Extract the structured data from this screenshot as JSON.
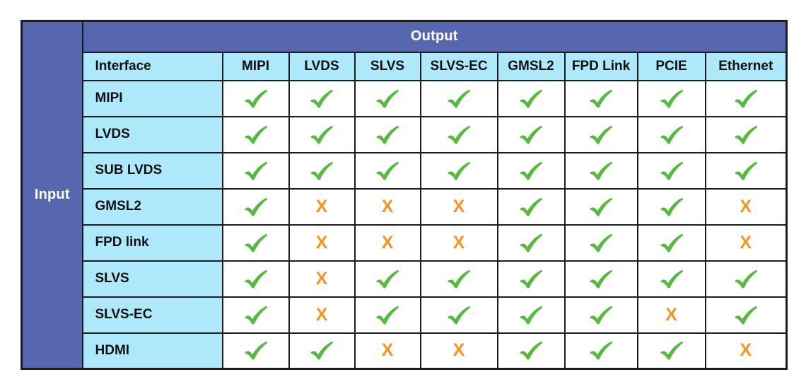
{
  "title_output": "Output",
  "title_input": "Input",
  "columns": [
    "Interface",
    "MIPI",
    "LVDS",
    "SLVS",
    "SLVS-EC",
    "GMSL2",
    "FPD Link",
    "PCIE",
    "Ethernet"
  ],
  "rows": [
    {
      "label": "MIPI",
      "marks": [
        "check",
        "check",
        "check",
        "check",
        "check",
        "check",
        "check",
        "check"
      ]
    },
    {
      "label": "LVDS",
      "marks": [
        "check",
        "check",
        "check",
        "check",
        "check",
        "check",
        "check",
        "check"
      ]
    },
    {
      "label": "SUB LVDS",
      "marks": [
        "check",
        "check",
        "check",
        "check",
        "check",
        "check",
        "check",
        "check"
      ]
    },
    {
      "label": "GMSL2",
      "marks": [
        "check",
        "x",
        "x",
        "x",
        "check",
        "check",
        "check",
        "x"
      ]
    },
    {
      "label": "FPD link",
      "marks": [
        "check",
        "x",
        "x",
        "x",
        "check",
        "check",
        "check",
        "x"
      ]
    },
    {
      "label": "SLVS",
      "marks": [
        "check",
        "x",
        "check",
        "check",
        "check",
        "check",
        "check",
        "check"
      ]
    },
    {
      "label": "SLVS-EC",
      "marks": [
        "check",
        "x",
        "check",
        "check",
        "check",
        "check",
        "x",
        "check"
      ]
    },
    {
      "label": "HDMI",
      "marks": [
        "check",
        "check",
        "x",
        "x",
        "check",
        "check",
        "check",
        "x"
      ]
    }
  ],
  "marks": {
    "x_char": "X",
    "check_meaning": "supported",
    "x_meaning": "not supported"
  },
  "colors": {
    "header_blue": "#5667af",
    "cell_light_blue": "#ade9fb",
    "check_green": "#58b941",
    "x_orange": "#f7941d",
    "border_black": "#1c1c1c"
  },
  "chart_data": {
    "type": "table",
    "title": "Input/Output interface conversion compatibility matrix",
    "row_axis_label": "Input",
    "column_axis_label": "Output",
    "columns": [
      "MIPI",
      "LVDS",
      "SLVS",
      "SLVS-EC",
      "GMSL2",
      "FPD Link",
      "PCIE",
      "Ethernet"
    ],
    "rows": [
      "MIPI",
      "LVDS",
      "SUB LVDS",
      "GMSL2",
      "FPD link",
      "SLVS",
      "SLVS-EC",
      "HDMI"
    ],
    "values": [
      [
        true,
        true,
        true,
        true,
        true,
        true,
        true,
        true
      ],
      [
        true,
        true,
        true,
        true,
        true,
        true,
        true,
        true
      ],
      [
        true,
        true,
        true,
        true,
        true,
        true,
        true,
        true
      ],
      [
        true,
        false,
        false,
        false,
        true,
        true,
        true,
        false
      ],
      [
        true,
        false,
        false,
        false,
        true,
        true,
        true,
        false
      ],
      [
        true,
        false,
        true,
        true,
        true,
        true,
        true,
        true
      ],
      [
        true,
        false,
        true,
        true,
        true,
        true,
        false,
        true
      ],
      [
        true,
        true,
        false,
        false,
        true,
        true,
        true,
        false
      ]
    ],
    "legend": {
      "true": "green check",
      "false": "orange X"
    }
  }
}
